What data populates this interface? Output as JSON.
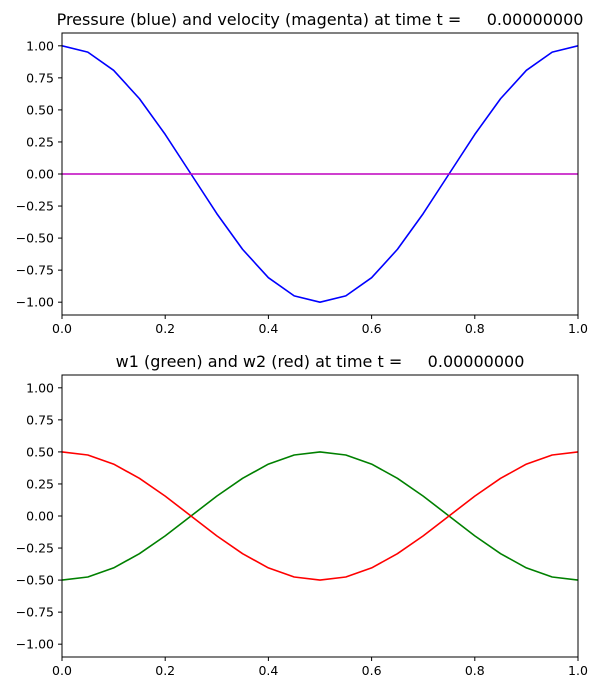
{
  "chart_data": [
    {
      "type": "line",
      "title": "Pressure (blue) and velocity (magenta) at time t =     0.00000000",
      "xlim": [
        0.0,
        1.0
      ],
      "ylim": [
        -1.1,
        1.1
      ],
      "grid": false,
      "xticks": [
        "0.0",
        "0.2",
        "0.4",
        "0.6",
        "0.8",
        "1.0"
      ],
      "yticks": [
        "1.00",
        "0.75",
        "0.50",
        "0.25",
        "0.00",
        "−0.25",
        "−0.50",
        "−0.75",
        "−1.00"
      ],
      "x": [
        0.0,
        0.05,
        0.1,
        0.15,
        0.2,
        0.25,
        0.3,
        0.35,
        0.4,
        0.45,
        0.5,
        0.55,
        0.6,
        0.65,
        0.7,
        0.75,
        0.8,
        0.85,
        0.9,
        0.95,
        1.0
      ],
      "series": [
        {
          "color": "#0000ff",
          "values": [
            1.0,
            0.951,
            0.809,
            0.588,
            0.309,
            0.0,
            -0.309,
            -0.588,
            -0.809,
            -0.951,
            -1.0,
            -0.951,
            -0.809,
            -0.588,
            -0.309,
            0.0,
            0.309,
            0.588,
            0.809,
            0.951,
            1.0
          ]
        },
        {
          "color": "#bf00bf",
          "values": [
            0.0,
            0.0,
            0.0,
            0.0,
            0.0,
            0.0,
            0.0,
            0.0,
            0.0,
            0.0,
            0.0,
            0.0,
            0.0,
            0.0,
            0.0,
            0.0,
            0.0,
            0.0,
            0.0,
            0.0,
            0.0
          ]
        }
      ]
    },
    {
      "type": "line",
      "title": "w1 (green) and w2 (red) at time t =     0.00000000",
      "xlim": [
        0.0,
        1.0
      ],
      "ylim": [
        -1.1,
        1.1
      ],
      "grid": false,
      "xticks": [
        "0.0",
        "0.2",
        "0.4",
        "0.6",
        "0.8",
        "1.0"
      ],
      "yticks": [
        "1.00",
        "0.75",
        "0.50",
        "0.25",
        "0.00",
        "−0.25",
        "−0.50",
        "−0.75",
        "−1.00"
      ],
      "x": [
        0.0,
        0.05,
        0.1,
        0.15,
        0.2,
        0.25,
        0.3,
        0.35,
        0.4,
        0.45,
        0.5,
        0.55,
        0.6,
        0.65,
        0.7,
        0.75,
        0.8,
        0.85,
        0.9,
        0.95,
        1.0
      ],
      "series": [
        {
          "color": "#008000",
          "values": [
            -0.5,
            -0.476,
            -0.405,
            -0.294,
            -0.155,
            0.0,
            0.155,
            0.294,
            0.405,
            0.476,
            0.5,
            0.476,
            0.405,
            0.294,
            0.155,
            0.0,
            -0.155,
            -0.294,
            -0.405,
            -0.476,
            -0.5
          ]
        },
        {
          "color": "#ff0000",
          "values": [
            0.5,
            0.476,
            0.405,
            0.294,
            0.155,
            0.0,
            -0.155,
            -0.294,
            -0.405,
            -0.476,
            -0.5,
            -0.476,
            -0.405,
            -0.294,
            -0.155,
            0.0,
            0.155,
            0.294,
            0.405,
            0.476,
            0.5
          ]
        }
      ]
    }
  ]
}
